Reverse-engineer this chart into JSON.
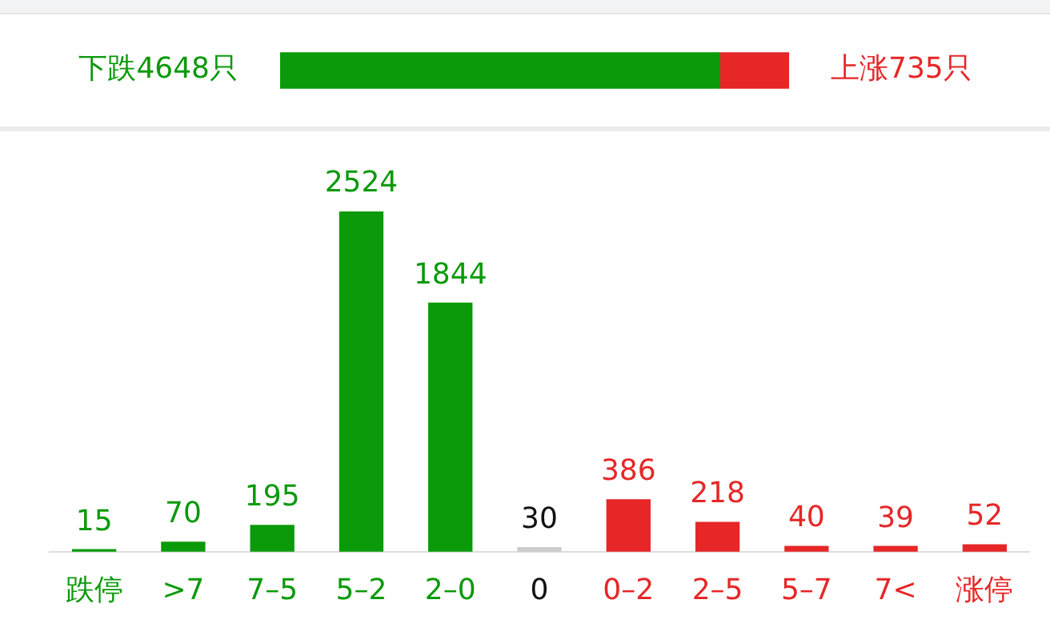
{
  "chart_data": [
    {
      "type": "bar",
      "orientation": "horizontal",
      "stacked": true,
      "categories": [
        null
      ],
      "legend": false,
      "series": [
        {
          "color": "#0a9a0a",
          "values": [
            4648
          ],
          "value_labels": [
            "下跌4648只"
          ]
        },
        {
          "color": "#e62627",
          "values": [
            735
          ],
          "value_labels": [
            "上涨735只"
          ]
        }
      ]
    },
    {
      "type": "bar",
      "categories": [
        "跌停",
        ">7",
        "7–5",
        "5–2",
        "2–0",
        "0",
        "0–2",
        "2–5",
        "5–7",
        "7<",
        "涨停"
      ],
      "values": [
        15,
        70,
        195,
        2524,
        1844,
        30,
        386,
        218,
        40,
        39,
        52
      ],
      "colors": [
        "#0a9a0a",
        "#0a9a0a",
        "#0a9a0a",
        "#0a9a0a",
        "#0a9a0a",
        "#cccccc",
        "#e62627",
        "#e62627",
        "#e62627",
        "#e62627",
        "#e62627"
      ],
      "data_labels": true,
      "legend": false,
      "grid": false
    }
  ]
}
